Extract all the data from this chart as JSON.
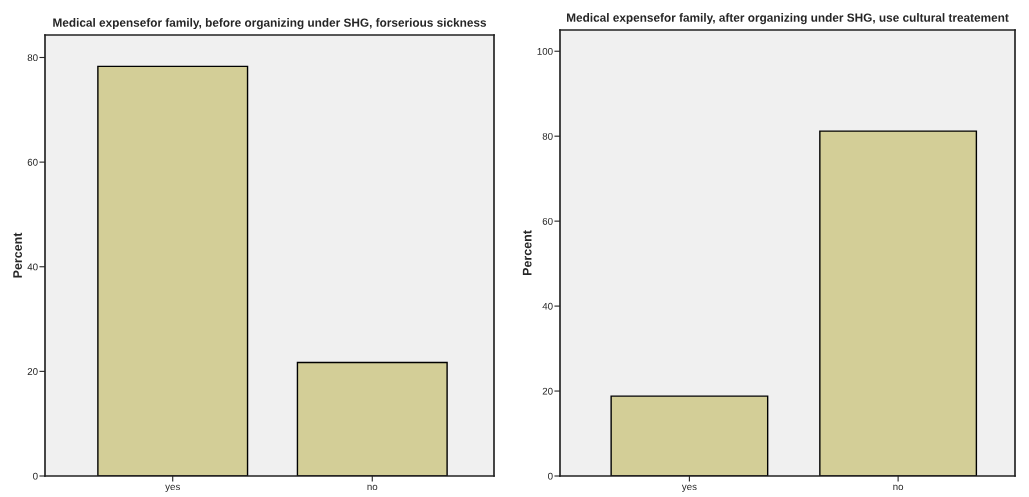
{
  "chart_data": [
    {
      "type": "bar",
      "title": "Medical expensefor family, before organizing under SHG, forserious sickness",
      "ylabel": "Percent",
      "categories": [
        "yes",
        "no"
      ],
      "values": [
        78.3,
        21.7
      ],
      "color": "#d3ce97",
      "ylim": [
        0,
        84.3
      ],
      "yticks": [
        0,
        20,
        40,
        60,
        80
      ],
      "grid": false
    },
    {
      "type": "bar",
      "title": "Medical expensefor family, after organizing under SHG, use cultural treatement",
      "ylabel": "Percent",
      "categories": [
        "yes",
        "no"
      ],
      "values": [
        18.8,
        81.2
      ],
      "color": "#d3ce97",
      "ylim": [
        0,
        105
      ],
      "yticks": [
        0,
        20,
        40,
        60,
        80,
        100
      ],
      "grid": false
    }
  ]
}
